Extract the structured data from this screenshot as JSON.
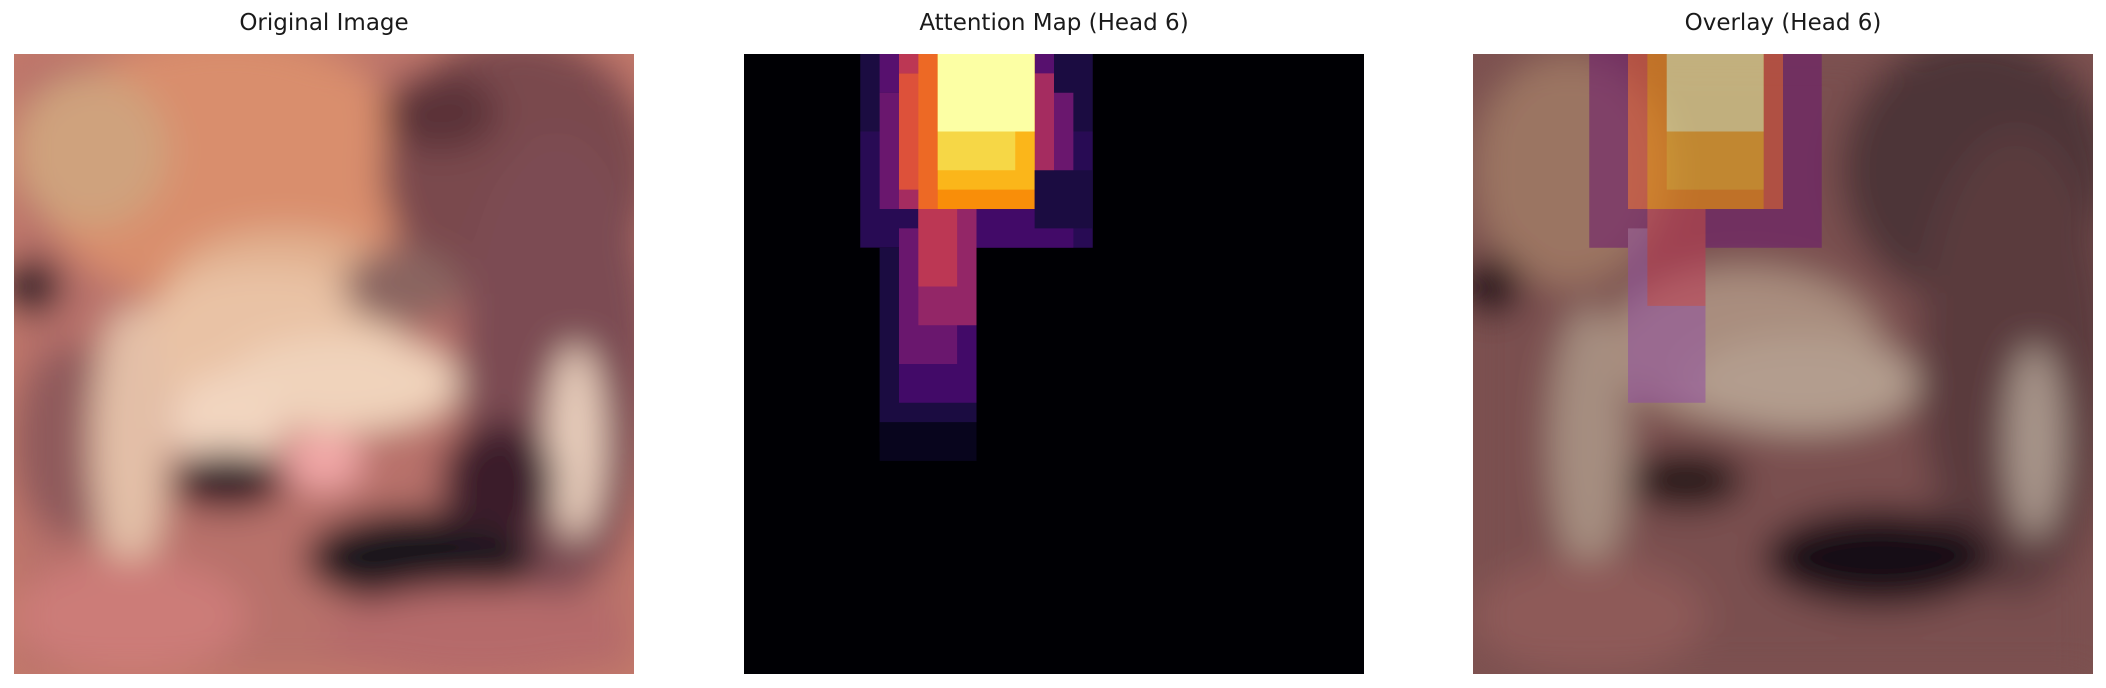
{
  "panels": [
    {
      "title": "Original Image"
    },
    {
      "title": "Attention Map (Head 6)"
    },
    {
      "title": "Overlay (Head 6)"
    }
  ]
}
